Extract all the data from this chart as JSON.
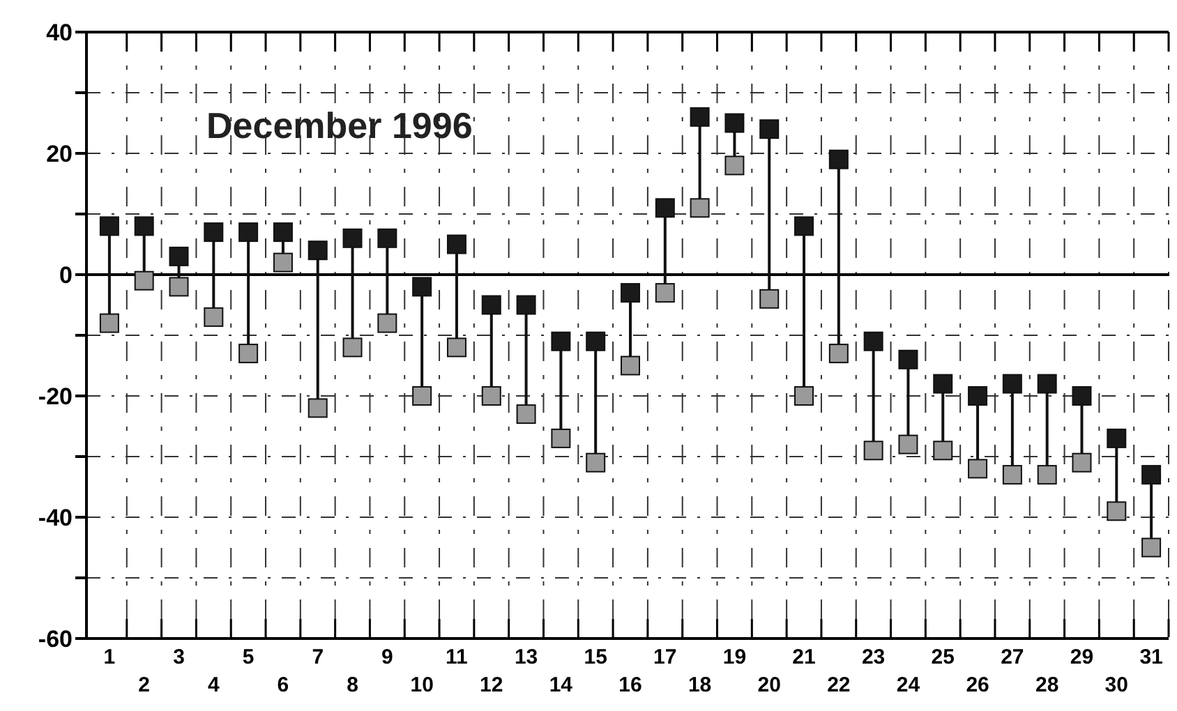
{
  "chart_data": {
    "type": "scatter",
    "title": "December 1996",
    "categories": [
      "1",
      "2",
      "3",
      "4",
      "5",
      "6",
      "7",
      "8",
      "9",
      "10",
      "11",
      "12",
      "13",
      "14",
      "15",
      "16",
      "17",
      "18",
      "19",
      "20",
      "21",
      "22",
      "23",
      "24",
      "25",
      "26",
      "27",
      "28",
      "29",
      "30",
      "31"
    ],
    "series": [
      {
        "color": "#1a1a1a",
        "values": [
          8,
          8,
          3,
          7,
          7,
          7,
          4,
          6,
          6,
          -2,
          5,
          -5,
          -5,
          -11,
          -11,
          -3,
          11,
          26,
          25,
          24,
          8,
          19,
          -11,
          -14,
          -18,
          -20,
          -18,
          -18,
          -20,
          -27,
          -33
        ]
      },
      {
        "color": "#9a9a9a",
        "values": [
          -8,
          -1,
          -2,
          -7,
          -13,
          2,
          -22,
          -12,
          -8,
          -20,
          -12,
          -20,
          -23,
          -27,
          -31,
          -15,
          -3,
          11,
          18,
          -4,
          -20,
          -13,
          -29,
          -28,
          -29,
          -32,
          -33,
          -33,
          -31,
          -39,
          -45
        ]
      }
    ],
    "ylim": [
      -60,
      40
    ],
    "yticks": [
      {
        "value": -60,
        "label": "-60"
      },
      {
        "value": -50,
        "label": null
      },
      {
        "value": -40,
        "label": "-40"
      },
      {
        "value": -30,
        "label": null
      },
      {
        "value": -20,
        "label": "-20"
      },
      {
        "value": -10,
        "label": null
      },
      0,
      {
        "value": 10,
        "label": null
      },
      20,
      {
        "value": 30,
        "label": null
      },
      40
    ],
    "grid": true,
    "marker": "square",
    "ref_lines": [
      {
        "axis": "y",
        "value": 0
      }
    ]
  }
}
